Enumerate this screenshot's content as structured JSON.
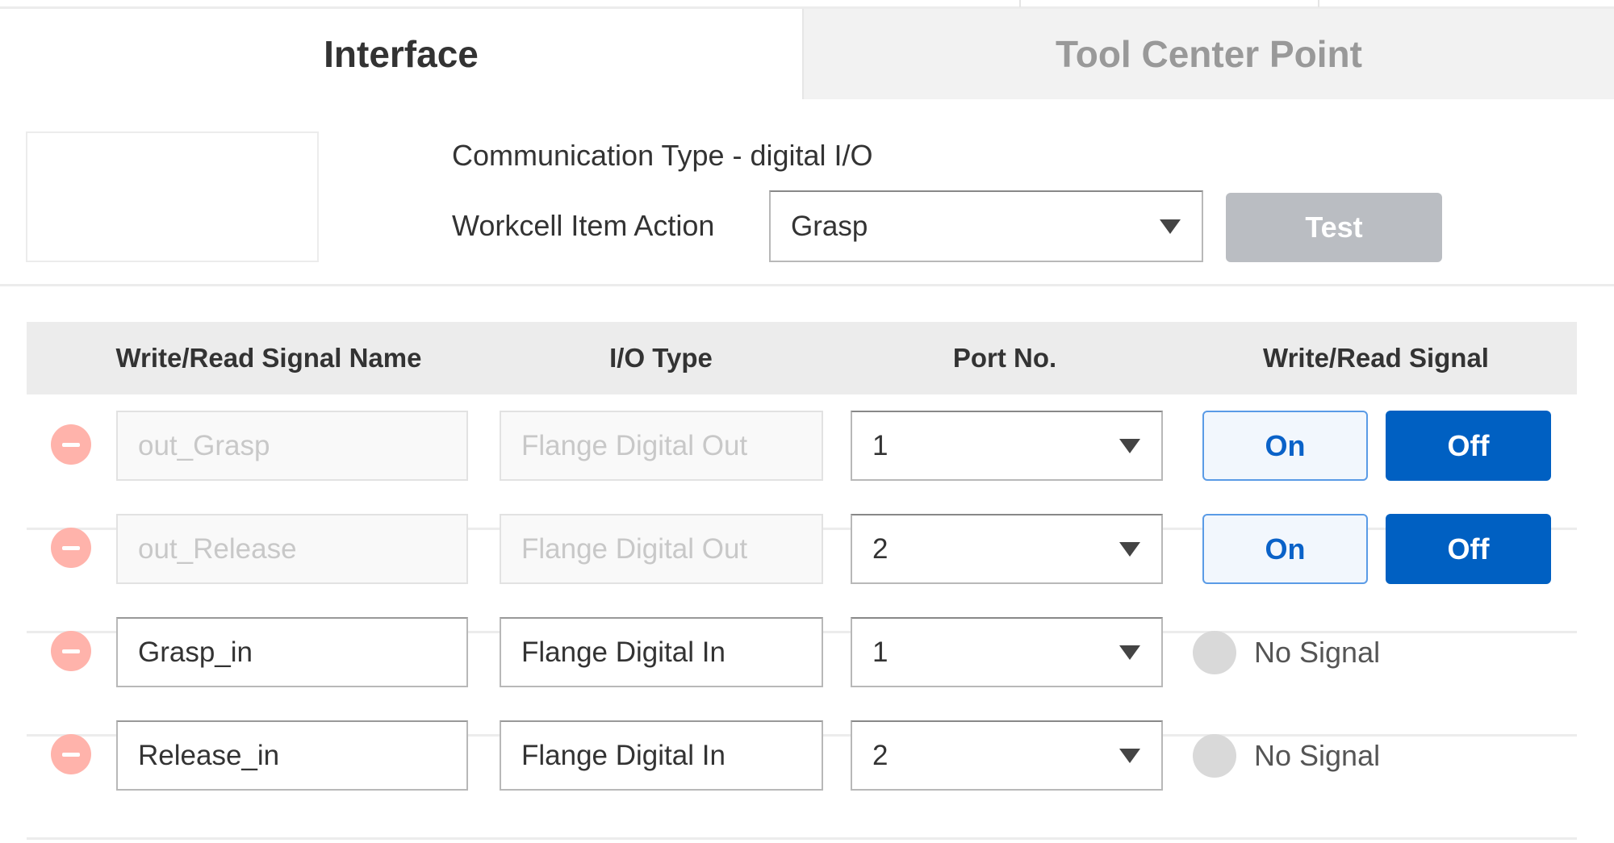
{
  "tabs": [
    {
      "label": "Interface",
      "active": true
    },
    {
      "label": "Tool Center Point",
      "active": false
    }
  ],
  "config": {
    "communication_type": "Communication Type - digital I/O",
    "action_label": "Workcell Item Action",
    "action_value": "Grasp",
    "test_label": "Test"
  },
  "table": {
    "headers": [
      "Write/Read Signal Name",
      "I/O Type",
      "Port No.",
      "Write/Read Signal"
    ],
    "rows": [
      {
        "name": "out_Grasp",
        "io_type": "Flange Digital Out",
        "port": "1",
        "disabled": true,
        "on": "On",
        "off": "Off",
        "state": "off"
      },
      {
        "name": "out_Release",
        "io_type": "Flange Digital Out",
        "port": "2",
        "disabled": true,
        "on": "On",
        "off": "Off",
        "state": "off"
      },
      {
        "name": "Grasp_in",
        "io_type": "Flange Digital In",
        "port": "1",
        "disabled": false,
        "signal": "No Signal"
      },
      {
        "name": "Release_in",
        "io_type": "Flange Digital In",
        "port": "2",
        "disabled": false,
        "signal": "No Signal"
      }
    ]
  },
  "colors": {
    "accent": "#0060c2",
    "remove": "#ffb3ab",
    "test_disabled": "#babdc2"
  }
}
